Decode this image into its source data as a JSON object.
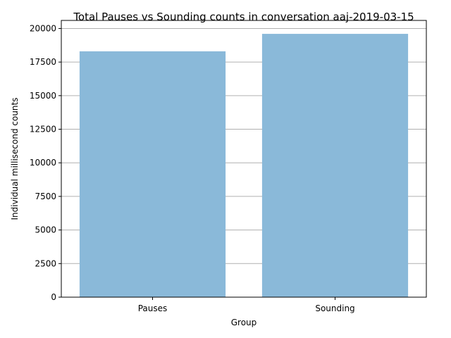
{
  "chart_data": {
    "type": "bar",
    "title": "Total Pauses vs Sounding counts in conversation aaj-2019-03-15",
    "xlabel": "Group",
    "ylabel": "Individual millisecond counts",
    "categories": [
      "Pauses",
      "Sounding"
    ],
    "values": [
      18300,
      19600
    ],
    "ylim": [
      0,
      20600
    ],
    "yticks": [
      0,
      2500,
      5000,
      7500,
      10000,
      12500,
      15000,
      17500,
      20000
    ],
    "grid": "y",
    "bar_color": "#8ab9d9"
  }
}
